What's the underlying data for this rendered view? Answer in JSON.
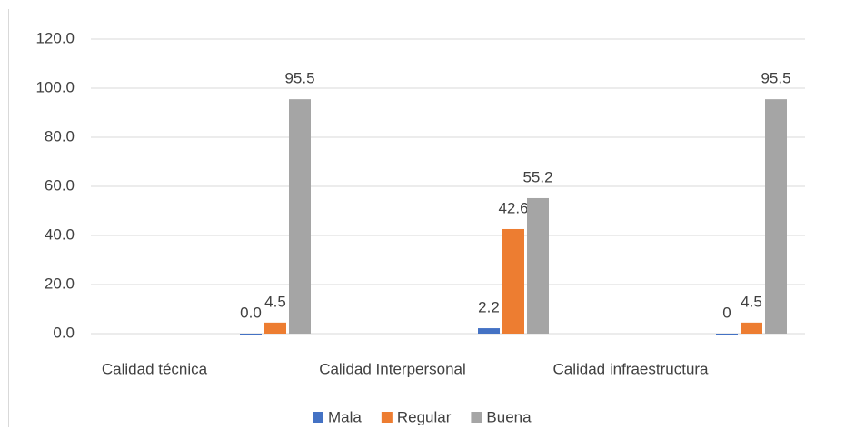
{
  "chart_data": {
    "type": "bar",
    "categories": [
      "Calidad técnica",
      "Calidad Interpersonal",
      "Calidad infraestructura"
    ],
    "series": [
      {
        "name": "Mala",
        "color": "#4472c4",
        "values": [
          0.0,
          2.2,
          0
        ],
        "value_labels": [
          "0.0",
          "2.2",
          "0"
        ]
      },
      {
        "name": "Regular",
        "color": "#ed7d31",
        "values": [
          4.5,
          42.6,
          4.5
        ],
        "value_labels": [
          "4.5",
          "42.6",
          "4.5"
        ]
      },
      {
        "name": "Buena",
        "color": "#a5a5a5",
        "values": [
          95.5,
          55.2,
          95.5
        ],
        "value_labels": [
          "95.5",
          "55.2",
          "95.5"
        ]
      }
    ],
    "ylim": [
      0,
      120
    ],
    "yticks": [
      {
        "value": 0,
        "label": "0.0"
      },
      {
        "value": 20,
        "label": "20.0"
      },
      {
        "value": 40,
        "label": "40.0"
      },
      {
        "value": 60,
        "label": "60.0"
      },
      {
        "value": 80,
        "label": "80.0"
      },
      {
        "value": 100,
        "label": "100.0"
      },
      {
        "value": 120,
        "label": "120.0"
      }
    ],
    "grid": true,
    "legend": "bottom"
  }
}
